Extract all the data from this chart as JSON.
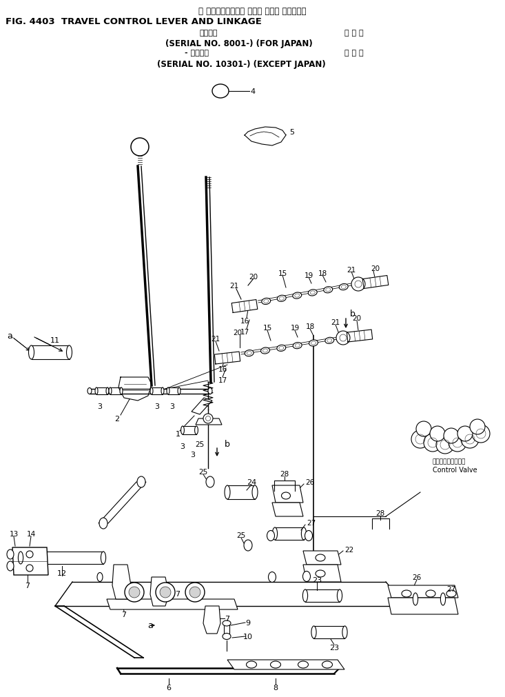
{
  "title_jp": "走 行　コントロール レバー および リンケージ",
  "title_en": "FIG. 4403  TRAVEL CONTROL LEVER AND LINKAGE",
  "serial_line1_jp": "適用号機",
  "serial_line1_right": "国 内 向",
  "serial_line2": "(SERIAL NO. 8001-) (FOR JAPAN)",
  "serial_line3_jp": "- 適用号機",
  "serial_line3_right": "海 外 向",
  "serial_line4": "(SERIAL NO. 10301-) (EXCEPT JAPAN)",
  "cv_jp": "コントロールバルブ",
  "cv_en": "Control Valve",
  "bg": "#ffffff",
  "lc": "#000000"
}
